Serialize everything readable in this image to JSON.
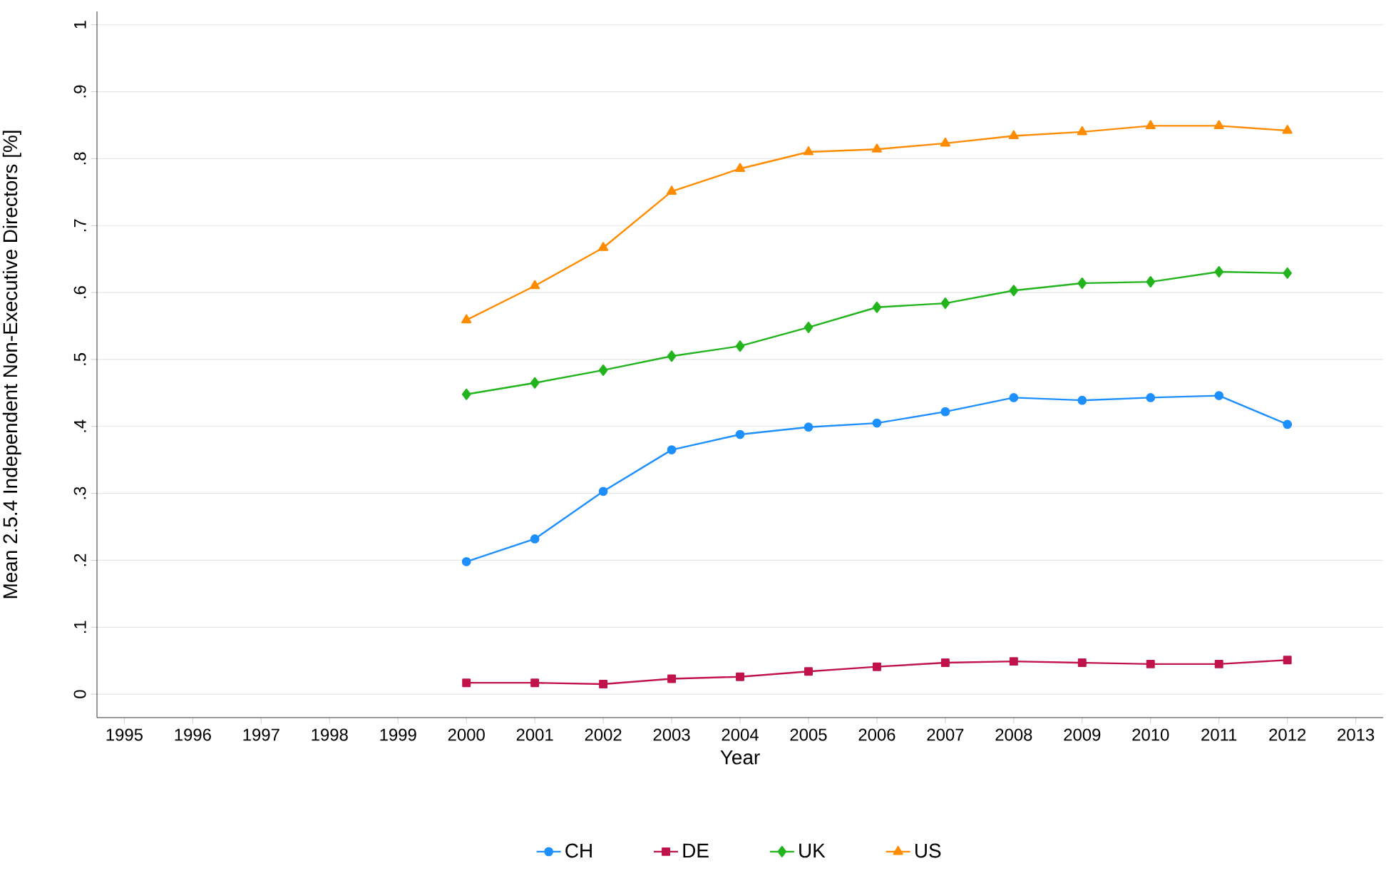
{
  "chart_data": {
    "type": "line",
    "xlabel": "Year",
    "ylabel": "Mean 2.5.4 Independent Non-Executive Directors [%]",
    "x": [
      2000,
      2001,
      2002,
      2003,
      2004,
      2005,
      2006,
      2007,
      2008,
      2009,
      2010,
      2011,
      2012
    ],
    "series": [
      {
        "name": "CH",
        "color": "#1e8fff",
        "marker": "circle",
        "values": [
          0.198,
          0.232,
          0.303,
          0.365,
          0.388,
          0.399,
          0.405,
          0.422,
          0.443,
          0.439,
          0.443,
          0.446,
          0.403
        ]
      },
      {
        "name": "DE",
        "color": "#c0134a",
        "marker": "square",
        "values": [
          0.017,
          0.017,
          0.015,
          0.023,
          0.026,
          0.034,
          0.041,
          0.047,
          0.049,
          0.047,
          0.045,
          0.045,
          0.051
        ]
      },
      {
        "name": "UK",
        "color": "#22b41c",
        "marker": "diamond",
        "values": [
          0.448,
          0.465,
          0.484,
          0.505,
          0.52,
          0.548,
          0.578,
          0.584,
          0.603,
          0.614,
          0.616,
          0.631,
          0.629
        ]
      },
      {
        "name": "US",
        "color": "#ff8c00",
        "marker": "triangle",
        "values": [
          0.559,
          0.61,
          0.667,
          0.751,
          0.785,
          0.81,
          0.814,
          0.823,
          0.834,
          0.84,
          0.849,
          0.849,
          0.842
        ]
      }
    ],
    "xlim": [
      1994.6,
      2013.4
    ],
    "xticks": [
      1995,
      1996,
      1997,
      1998,
      1999,
      2000,
      2001,
      2002,
      2003,
      2004,
      2005,
      2006,
      2007,
      2008,
      2009,
      2010,
      2011,
      2012,
      2013
    ],
    "ylim": [
      -0.035,
      1.02
    ],
    "yticks": [
      0,
      {
        "value": 0.1,
        "label": ".1"
      },
      {
        "value": 0.2,
        "label": ".2"
      },
      {
        "value": 0.3,
        "label": ".3"
      },
      {
        "value": 0.4,
        "label": ".4"
      },
      {
        "value": 0.5,
        "label": ".5"
      },
      {
        "value": 0.6,
        "label": ".6"
      },
      {
        "value": 0.7,
        "label": ".7"
      },
      {
        "value": 0.8,
        "label": ".8"
      },
      {
        "value": 0.9,
        "label": ".9"
      },
      1
    ],
    "grid": "y",
    "legend": "bottom",
    "line_style": "solid"
  }
}
